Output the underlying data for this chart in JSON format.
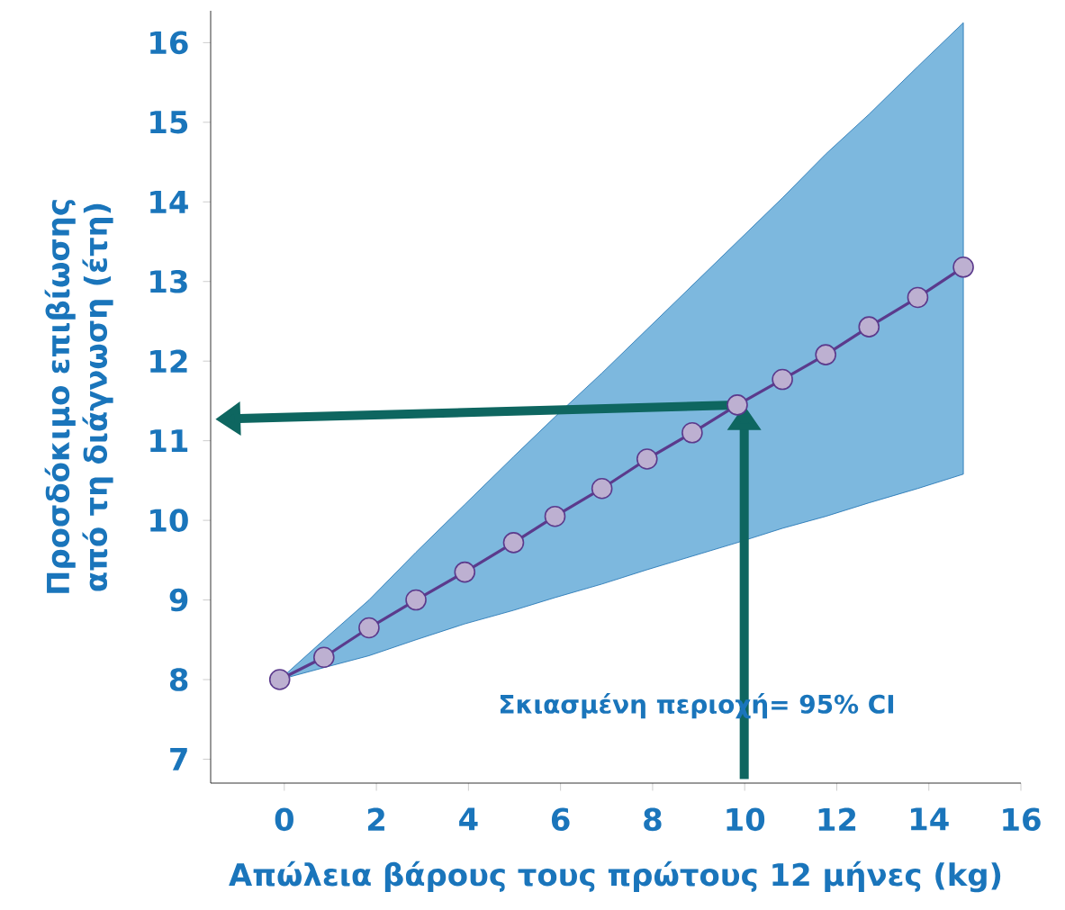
{
  "chart_data": {
    "type": "line",
    "xlabel": "Απώλεια βάρους τους πρώτους 12 μήνες (kg)",
    "ylabel": "Προσδόκιμο επιβίωσης από τη διάγνωση (έτη)",
    "annotations": [
      "Σκιασμένη περιοχή= 95% CI"
    ],
    "x": [
      -0.1,
      0.86,
      1.84,
      2.86,
      3.92,
      4.98,
      5.88,
      6.9,
      7.88,
      8.86,
      9.84,
      10.82,
      11.76,
      12.7,
      13.76,
      14.75
    ],
    "series": [
      {
        "color": "#5b3a8c",
        "values": [
          8.0,
          8.28,
          8.65,
          9.0,
          9.35,
          9.72,
          10.05,
          10.4,
          10.77,
          11.1,
          11.45,
          11.77,
          12.08,
          12.43,
          12.8,
          13.18
        ],
        "lower": [
          8.0,
          8.15,
          8.3,
          8.5,
          8.7,
          8.87,
          9.03,
          9.2,
          9.38,
          9.55,
          9.72,
          9.9,
          10.05,
          10.22,
          10.4,
          10.58
        ],
        "upper": [
          8.0,
          8.5,
          9.0,
          9.6,
          10.2,
          10.8,
          11.3,
          11.85,
          12.4,
          12.95,
          13.5,
          14.05,
          14.6,
          15.1,
          15.7,
          16.25
        ]
      }
    ],
    "xlim": [
      -1.6,
      16
    ],
    "ylim": [
      6.7,
      16.4
    ],
    "xticks": [
      0,
      2,
      4,
      6,
      8,
      10,
      12,
      14,
      16
    ],
    "yticks": [
      7,
      8,
      9,
      10,
      11,
      12,
      13,
      14,
      15,
      16
    ],
    "marker": "circle",
    "grid": false
  }
}
